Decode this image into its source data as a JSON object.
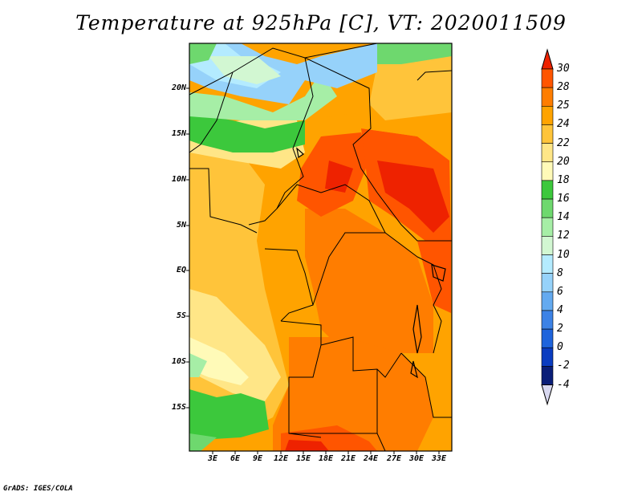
{
  "title": "Temperature at 925hPa [C], VT: 2020011509",
  "credit": "GrADS: IGES/COLA",
  "map": {
    "lat_ticks": [
      "20N",
      "15N",
      "10N",
      "5N",
      "EQ",
      "5S",
      "10S",
      "15S"
    ],
    "lon_ticks": [
      "3E",
      "6E",
      "9E",
      "12E",
      "15E",
      "18E",
      "21E",
      "24E",
      "27E",
      "30E",
      "33E"
    ],
    "colorbar_levels": [
      "30",
      "28",
      "25",
      "24",
      "22",
      "20",
      "18",
      "16",
      "14",
      "12",
      "10",
      "8",
      "6",
      "4",
      "2",
      "0",
      "-2",
      "-4"
    ],
    "colorbar_colors": [
      "#ee2200",
      "#ff5500",
      "#ff7d00",
      "#ffa300",
      "#ffc43a",
      "#ffe687",
      "#fffab8",
      "#3cc83c",
      "#6ed86e",
      "#a6eea6",
      "#d2f7d2",
      "#b4ebff",
      "#96d2fa",
      "#64aaf0",
      "#3c82e6",
      "#1e64dc",
      "#0a3cc0",
      "#0a1e78",
      "#d8d8f0"
    ]
  }
}
